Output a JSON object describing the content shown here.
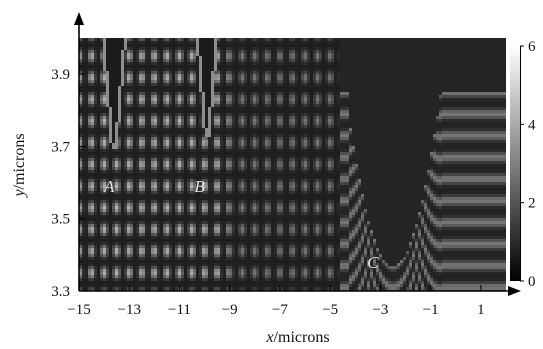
{
  "chart_data": {
    "type": "heatmap",
    "title": "",
    "xlabel": {
      "var": "x",
      "unit": "/microns"
    },
    "ylabel": {
      "var": "y",
      "unit": "/microns"
    },
    "xlim": [
      -15,
      2
    ],
    "ylim": [
      3.3,
      4.0
    ],
    "xticks": [
      "−15",
      "−13",
      "−11",
      "−9",
      "−7",
      "−5",
      "−3",
      "−1",
      "1"
    ],
    "yticks": [
      "3.3",
      "3.5",
      "3.7",
      "3.9"
    ],
    "colorbar": {
      "range": [
        0,
        6
      ],
      "ticks": [
        "0",
        "2",
        "4",
        "6"
      ],
      "colormap": "gray"
    },
    "annotations": [
      {
        "text": "A",
        "x": -13.8,
        "y": 3.59
      },
      {
        "text": "B",
        "x": -10.2,
        "y": 3.59
      },
      {
        "text": "C",
        "x": -3.3,
        "y": 3.38
      }
    ],
    "features": [
      {
        "name": "A",
        "type": "vertex",
        "x": -13.6,
        "y": 3.69
      },
      {
        "name": "B",
        "type": "vertex",
        "x": -9.9,
        "y": 3.73
      },
      {
        "name": "C",
        "type": "valley",
        "x": -2.5,
        "y": 3.37
      }
    ],
    "background_intensity": 0.5,
    "fringe_intensity_max": 5.5,
    "grid": false
  }
}
